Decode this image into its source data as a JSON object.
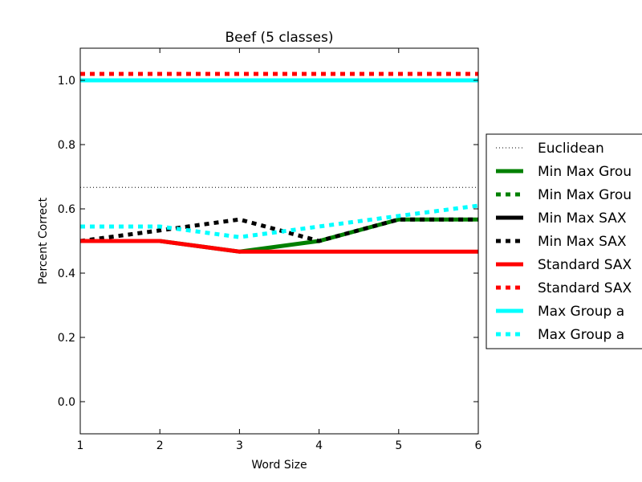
{
  "chart_data": {
    "type": "line",
    "title": "Beef (5 classes)",
    "xlabel": "Word Size",
    "ylabel": "Percent Correct",
    "xlim": [
      1,
      6
    ],
    "ylim": [
      -0.1,
      1.1
    ],
    "x": [
      1,
      2,
      3,
      4,
      5,
      6
    ],
    "xticks": [
      "1",
      "2",
      "3",
      "4",
      "5",
      "6"
    ],
    "yticks": [
      "0.0",
      "0.2",
      "0.4",
      "0.6",
      "0.8",
      "1.0"
    ],
    "grid": false,
    "legend_position": "right, outside plot area (clipped)",
    "series": [
      {
        "name": "Euclidean",
        "color": "#000000",
        "style": "dotted",
        "values": [
          0.667,
          0.667,
          0.667,
          0.667,
          0.667,
          0.667
        ]
      },
      {
        "name": "Min Max Grou",
        "color": "#008000",
        "style": "solid",
        "values": [
          0.5,
          0.5,
          0.467,
          0.5,
          0.567,
          0.567
        ]
      },
      {
        "name": "Min Max Grou",
        "color": "#008000",
        "style": "dashed",
        "values": [
          1.0,
          1.0,
          1.0,
          1.0,
          1.0,
          1.0
        ]
      },
      {
        "name": "Min Max SAX",
        "color": "#000000",
        "style": "solid",
        "values": [
          1.0,
          1.0,
          1.0,
          1.0,
          1.0,
          1.0
        ]
      },
      {
        "name": "Min Max SAX",
        "color": "#000000",
        "style": "dashed",
        "values": [
          0.5,
          0.533,
          0.567,
          0.5,
          0.567,
          0.567
        ]
      },
      {
        "name": "Standard SAX",
        "color": "#ff0000",
        "style": "solid",
        "values": [
          0.5,
          0.5,
          0.467,
          0.467,
          0.467,
          0.467
        ]
      },
      {
        "name": "Standard SAX",
        "color": "#ff0000",
        "style": "dashed",
        "values": [
          1.02,
          1.02,
          1.02,
          1.02,
          1.02,
          1.02
        ]
      },
      {
        "name": "Max Group a",
        "color": "#00ffff",
        "style": "solid",
        "values": [
          1.0,
          1.0,
          1.0,
          1.0,
          1.0,
          1.0
        ]
      },
      {
        "name": "Max Group a",
        "color": "#00ffff",
        "style": "dashed",
        "values": [
          0.545,
          0.545,
          0.512,
          0.545,
          0.578,
          0.61
        ]
      }
    ]
  }
}
